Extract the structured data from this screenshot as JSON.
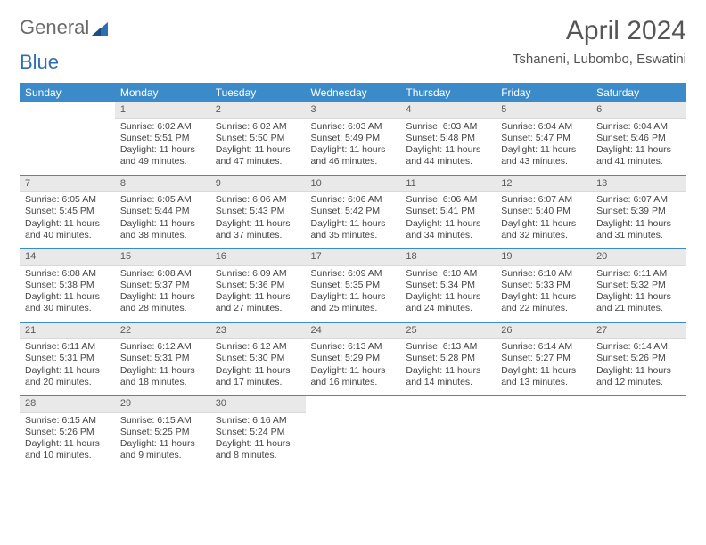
{
  "brand": {
    "part1": "General",
    "part2": "Blue"
  },
  "title": "April 2024",
  "subtitle": "Tshaneni, Lubombo, Eswatini",
  "colors": {
    "header_bg": "#3b8bca",
    "header_text": "#ffffff",
    "daynum_bg": "#e9e9e9",
    "text": "#444444",
    "rule": "#3b8bca",
    "page_bg": "#ffffff"
  },
  "typography": {
    "body_fontsize": 10.5,
    "title_fontsize": 30,
    "subtitle_fontsize": 15
  },
  "day_headers": [
    "Sunday",
    "Monday",
    "Tuesday",
    "Wednesday",
    "Thursday",
    "Friday",
    "Saturday"
  ],
  "weeks": [
    [
      {
        "n": "",
        "sr": "",
        "ss": "",
        "dl": ""
      },
      {
        "n": "1",
        "sr": "Sunrise: 6:02 AM",
        "ss": "Sunset: 5:51 PM",
        "dl": "Daylight: 11 hours and 49 minutes."
      },
      {
        "n": "2",
        "sr": "Sunrise: 6:02 AM",
        "ss": "Sunset: 5:50 PM",
        "dl": "Daylight: 11 hours and 47 minutes."
      },
      {
        "n": "3",
        "sr": "Sunrise: 6:03 AM",
        "ss": "Sunset: 5:49 PM",
        "dl": "Daylight: 11 hours and 46 minutes."
      },
      {
        "n": "4",
        "sr": "Sunrise: 6:03 AM",
        "ss": "Sunset: 5:48 PM",
        "dl": "Daylight: 11 hours and 44 minutes."
      },
      {
        "n": "5",
        "sr": "Sunrise: 6:04 AM",
        "ss": "Sunset: 5:47 PM",
        "dl": "Daylight: 11 hours and 43 minutes."
      },
      {
        "n": "6",
        "sr": "Sunrise: 6:04 AM",
        "ss": "Sunset: 5:46 PM",
        "dl": "Daylight: 11 hours and 41 minutes."
      }
    ],
    [
      {
        "n": "7",
        "sr": "Sunrise: 6:05 AM",
        "ss": "Sunset: 5:45 PM",
        "dl": "Daylight: 11 hours and 40 minutes."
      },
      {
        "n": "8",
        "sr": "Sunrise: 6:05 AM",
        "ss": "Sunset: 5:44 PM",
        "dl": "Daylight: 11 hours and 38 minutes."
      },
      {
        "n": "9",
        "sr": "Sunrise: 6:06 AM",
        "ss": "Sunset: 5:43 PM",
        "dl": "Daylight: 11 hours and 37 minutes."
      },
      {
        "n": "10",
        "sr": "Sunrise: 6:06 AM",
        "ss": "Sunset: 5:42 PM",
        "dl": "Daylight: 11 hours and 35 minutes."
      },
      {
        "n": "11",
        "sr": "Sunrise: 6:06 AM",
        "ss": "Sunset: 5:41 PM",
        "dl": "Daylight: 11 hours and 34 minutes."
      },
      {
        "n": "12",
        "sr": "Sunrise: 6:07 AM",
        "ss": "Sunset: 5:40 PM",
        "dl": "Daylight: 11 hours and 32 minutes."
      },
      {
        "n": "13",
        "sr": "Sunrise: 6:07 AM",
        "ss": "Sunset: 5:39 PM",
        "dl": "Daylight: 11 hours and 31 minutes."
      }
    ],
    [
      {
        "n": "14",
        "sr": "Sunrise: 6:08 AM",
        "ss": "Sunset: 5:38 PM",
        "dl": "Daylight: 11 hours and 30 minutes."
      },
      {
        "n": "15",
        "sr": "Sunrise: 6:08 AM",
        "ss": "Sunset: 5:37 PM",
        "dl": "Daylight: 11 hours and 28 minutes."
      },
      {
        "n": "16",
        "sr": "Sunrise: 6:09 AM",
        "ss": "Sunset: 5:36 PM",
        "dl": "Daylight: 11 hours and 27 minutes."
      },
      {
        "n": "17",
        "sr": "Sunrise: 6:09 AM",
        "ss": "Sunset: 5:35 PM",
        "dl": "Daylight: 11 hours and 25 minutes."
      },
      {
        "n": "18",
        "sr": "Sunrise: 6:10 AM",
        "ss": "Sunset: 5:34 PM",
        "dl": "Daylight: 11 hours and 24 minutes."
      },
      {
        "n": "19",
        "sr": "Sunrise: 6:10 AM",
        "ss": "Sunset: 5:33 PM",
        "dl": "Daylight: 11 hours and 22 minutes."
      },
      {
        "n": "20",
        "sr": "Sunrise: 6:11 AM",
        "ss": "Sunset: 5:32 PM",
        "dl": "Daylight: 11 hours and 21 minutes."
      }
    ],
    [
      {
        "n": "21",
        "sr": "Sunrise: 6:11 AM",
        "ss": "Sunset: 5:31 PM",
        "dl": "Daylight: 11 hours and 20 minutes."
      },
      {
        "n": "22",
        "sr": "Sunrise: 6:12 AM",
        "ss": "Sunset: 5:31 PM",
        "dl": "Daylight: 11 hours and 18 minutes."
      },
      {
        "n": "23",
        "sr": "Sunrise: 6:12 AM",
        "ss": "Sunset: 5:30 PM",
        "dl": "Daylight: 11 hours and 17 minutes."
      },
      {
        "n": "24",
        "sr": "Sunrise: 6:13 AM",
        "ss": "Sunset: 5:29 PM",
        "dl": "Daylight: 11 hours and 16 minutes."
      },
      {
        "n": "25",
        "sr": "Sunrise: 6:13 AM",
        "ss": "Sunset: 5:28 PM",
        "dl": "Daylight: 11 hours and 14 minutes."
      },
      {
        "n": "26",
        "sr": "Sunrise: 6:14 AM",
        "ss": "Sunset: 5:27 PM",
        "dl": "Daylight: 11 hours and 13 minutes."
      },
      {
        "n": "27",
        "sr": "Sunrise: 6:14 AM",
        "ss": "Sunset: 5:26 PM",
        "dl": "Daylight: 11 hours and 12 minutes."
      }
    ],
    [
      {
        "n": "28",
        "sr": "Sunrise: 6:15 AM",
        "ss": "Sunset: 5:26 PM",
        "dl": "Daylight: 11 hours and 10 minutes."
      },
      {
        "n": "29",
        "sr": "Sunrise: 6:15 AM",
        "ss": "Sunset: 5:25 PM",
        "dl": "Daylight: 11 hours and 9 minutes."
      },
      {
        "n": "30",
        "sr": "Sunrise: 6:16 AM",
        "ss": "Sunset: 5:24 PM",
        "dl": "Daylight: 11 hours and 8 minutes."
      },
      {
        "n": "",
        "sr": "",
        "ss": "",
        "dl": ""
      },
      {
        "n": "",
        "sr": "",
        "ss": "",
        "dl": ""
      },
      {
        "n": "",
        "sr": "",
        "ss": "",
        "dl": ""
      },
      {
        "n": "",
        "sr": "",
        "ss": "",
        "dl": ""
      }
    ]
  ]
}
